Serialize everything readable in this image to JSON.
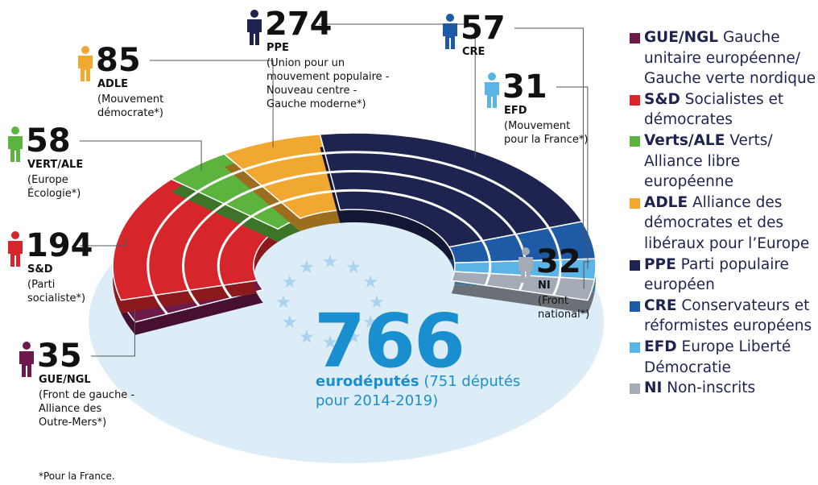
{
  "chart_data": {
    "type": "hemicycle",
    "categories": [
      "GUE/NGL",
      "S&D",
      "Verts/ALE",
      "ADLE",
      "PPE",
      "CRE",
      "EFD",
      "NI"
    ],
    "values": [
      35,
      194,
      58,
      85,
      274,
      57,
      31,
      32
    ],
    "colors": [
      "#6b1a4b",
      "#d7262b",
      "#5cb33e",
      "#f0a830",
      "#1e2350",
      "#1f5aa6",
      "#5ab4e5",
      "#a3acb6"
    ],
    "legend_descriptions": [
      "Gauche unitaire européenne/ Gauche verte nordique",
      "Socialistes et démocrates",
      "Verts/ Alliance libre européenne",
      "Alliance des démocrates et des libéraux pour l’Europe",
      "Parti populaire européen",
      "Conservateurs et réformistes européens",
      "Europe Liberté Démocratie",
      "Non-inscrits"
    ],
    "callout_names": [
      "GUE/NGL",
      "S&D",
      "VERT/ALE",
      "ADLE",
      "PPE",
      "CRE",
      "EFD",
      "NI"
    ],
    "callout_notes": [
      [
        "(Front de gauche -",
        "Alliance des",
        "Outre-Mers*)"
      ],
      [
        "(Parti",
        "socialiste*)"
      ],
      [
        "(Europe",
        "Écologie*)"
      ],
      [
        "(Mouvement",
        "démocrate*)"
      ],
      [
        "(Union pour un",
        "mouvement populaire -",
        "Nouveau centre -",
        "Gauche moderne*)"
      ],
      [],
      [
        "(Mouvement",
        "pour la France*)"
      ],
      [
        "(Front",
        "national*)"
      ]
    ],
    "total": 766,
    "total_label": "eurodéputés",
    "total_note": [
      "(751 députés",
      "pour 2014-2019)"
    ],
    "footnote": "*Pour la France."
  }
}
